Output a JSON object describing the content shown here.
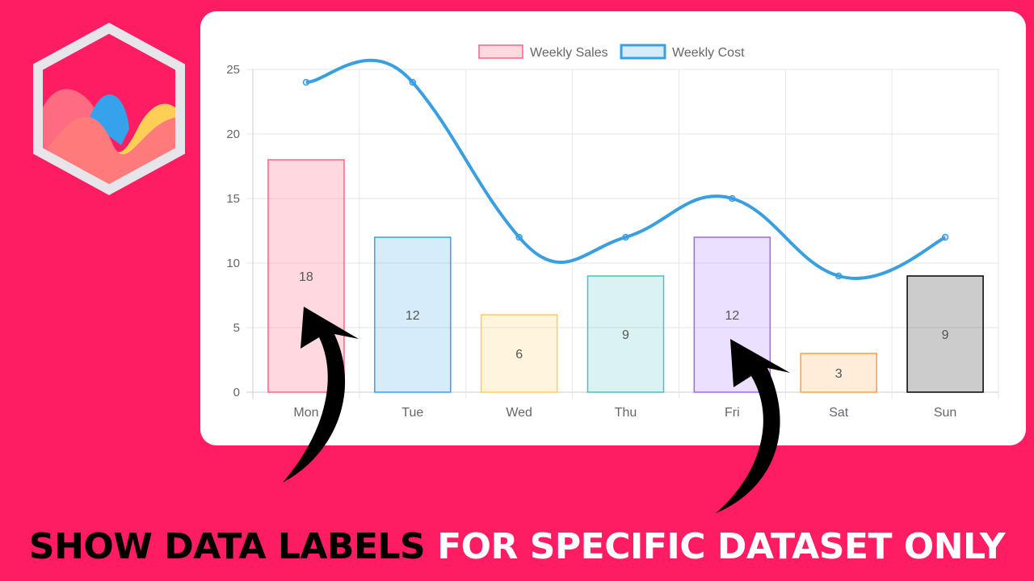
{
  "headline": {
    "part1": "SHOW DATA LABELS",
    "part2": "FOR SPECIFIC DATASET ONLY",
    "part1_color": "#000000",
    "part2_color": "#ffffff"
  },
  "background_color": "#fe1c63",
  "logo": {
    "name": "chartjs-logo-icon"
  },
  "chart_data": {
    "type": "bar",
    "categories": [
      "Mon",
      "Tue",
      "Wed",
      "Thu",
      "Fri",
      "Sat",
      "Sun"
    ],
    "ylim": [
      0,
      25
    ],
    "yticks": [
      0,
      5,
      10,
      15,
      20,
      25
    ],
    "grid": true,
    "legend": "top",
    "series": [
      {
        "name": "Weekly Sales",
        "type": "bar",
        "values": [
          18,
          12,
          6,
          9,
          12,
          3,
          9
        ],
        "data_labels": true,
        "fill_colors": [
          "rgba(255,99,132,0.25)",
          "rgba(54,162,235,0.2)",
          "rgba(255,206,86,0.2)",
          "rgba(75,192,192,0.2)",
          "rgba(153,102,255,0.2)",
          "rgba(255,159,64,0.2)",
          "rgba(0,0,0,0.2)"
        ],
        "border_colors": [
          "#ff6384",
          "#36a2eb",
          "#ffce56",
          "#4bc0c0",
          "#9966ff",
          "#ff9f40",
          "#000000"
        ]
      },
      {
        "name": "Weekly Cost",
        "type": "line",
        "values": [
          24,
          24,
          12,
          12,
          15,
          9,
          12
        ],
        "data_labels": false,
        "color": "#3a9fe0"
      }
    ]
  }
}
